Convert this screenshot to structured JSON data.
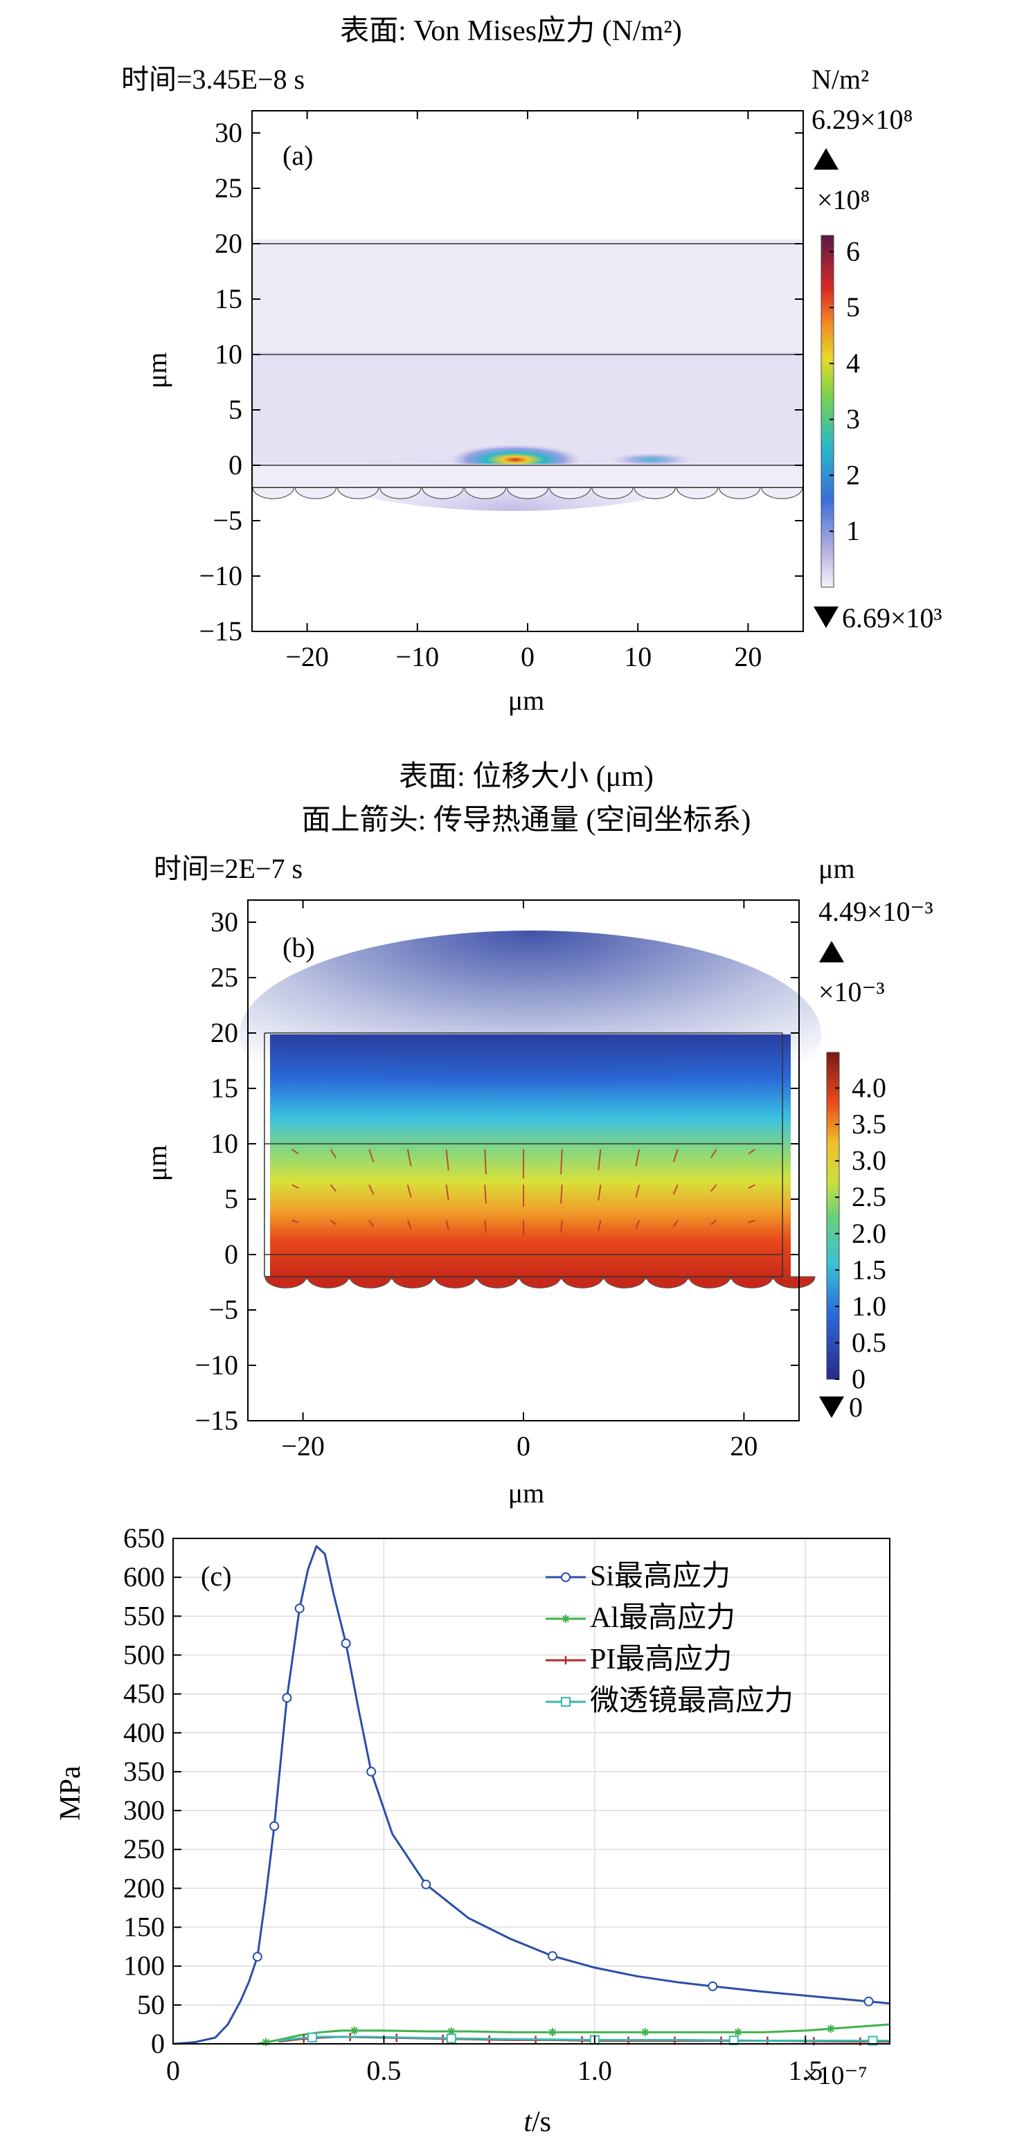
{
  "colors": {
    "si_series": "#2a4fa8",
    "al_series": "#3fb24a",
    "pi_series": "#b22a2a",
    "lens_series": "#3ab7b0",
    "axis": "#000000",
    "grid": "#dcdcdc"
  },
  "panel_a": {
    "title": "表面: Von Mises应力 (N/m²)",
    "time_label": "时间=3.45E−8 s",
    "panel_label": "(a)",
    "xlabel": "μm",
    "ylabel": "μm",
    "colorbar": {
      "unit": "N/m²",
      "max_label": "6.29×10⁸",
      "scale_label": "×10⁸",
      "min_label": "6.69×10³",
      "ticks": [
        "6",
        "5",
        "4",
        "3",
        "2",
        "1"
      ],
      "max_value": 6.29,
      "min_value": 0
    }
  },
  "panel_b": {
    "title_line1": "表面: 位移大小 (μm)",
    "title_line2": "面上箭头: 传导热通量 (空间坐标系)",
    "time_label": "时间=2E−7 s",
    "panel_label": "(b)",
    "xlabel": "μm",
    "ylabel": "μm",
    "colorbar": {
      "unit": "μm",
      "max_label": "4.49×10⁻³",
      "scale_label": "×10⁻³",
      "min_label": "0",
      "ticks": [
        "4.0",
        "3.5",
        "3.0",
        "2.5",
        "2.0",
        "1.5",
        "1.0",
        "0.5",
        "0"
      ],
      "max_value": 4.49,
      "min_value": 0
    }
  },
  "panel_c": {
    "panel_label": "(c)",
    "xlabel_var": "t",
    "xlabel_unit": "/s",
    "x_scale_label": "×10⁻⁷",
    "ylabel": "MPa"
  },
  "chart_data": [
    {
      "type": "heatmap",
      "panel": "a",
      "xlim": [
        -25,
        25
      ],
      "ylim": [
        -15,
        32
      ],
      "xticks": [
        -20,
        -10,
        0,
        10,
        20
      ],
      "yticks": [
        30,
        25,
        20,
        15,
        10,
        5,
        0,
        -5,
        -10,
        -15
      ],
      "layer_boundaries": [
        20,
        10,
        0,
        -2
      ],
      "peak": {
        "x": -1,
        "y": 0,
        "value": 629000000.0
      }
    },
    {
      "type": "heatmap",
      "panel": "b",
      "xlim": [
        -25,
        25
      ],
      "ylim": [
        -15,
        32
      ],
      "xticks": [
        -20,
        0,
        20
      ],
      "yticks": [
        30,
        25,
        20,
        15,
        10,
        5,
        0,
        -5,
        -10,
        -15
      ],
      "layer_boundaries": [
        20,
        10,
        0,
        -2
      ]
    },
    {
      "type": "line",
      "panel": "c",
      "xlim": [
        0,
        1.7
      ],
      "ylim": [
        0,
        650
      ],
      "xticks": [
        0,
        0.5,
        1.0,
        1.5
      ],
      "yticks": [
        0,
        50,
        100,
        150,
        200,
        250,
        300,
        350,
        400,
        450,
        500,
        550,
        600,
        650
      ],
      "legend": "top-right",
      "grid": true,
      "series": [
        {
          "name": "Si最高应力",
          "marker": "circle",
          "x": [
            0,
            0.05,
            0.1,
            0.13,
            0.16,
            0.18,
            0.2,
            0.22,
            0.24,
            0.27,
            0.3,
            0.32,
            0.34,
            0.36,
            0.38,
            0.41,
            0.44,
            0.47,
            0.52,
            0.6,
            0.7,
            0.8,
            0.9,
            1.0,
            1.1,
            1.2,
            1.28,
            1.4,
            1.5,
            1.6,
            1.7
          ],
          "y": [
            0,
            2,
            8,
            25,
            55,
            80,
            112,
            190,
            280,
            445,
            560,
            610,
            640,
            630,
            580,
            515,
            430,
            350,
            270,
            205,
            162,
            135,
            113,
            98,
            87,
            79,
            74,
            67,
            62,
            57,
            52
          ],
          "marker_x": [
            0.2,
            0.24,
            0.27,
            0.3,
            0.41,
            0.47,
            0.6,
            0.9,
            1.28,
            1.65
          ]
        },
        {
          "name": "Al最高应力",
          "marker": "asterisk",
          "x": [
            0.2,
            0.25,
            0.3,
            0.35,
            0.4,
            0.5,
            0.6,
            0.7,
            0.8,
            0.9,
            1.0,
            1.1,
            1.2,
            1.3,
            1.4,
            1.5,
            1.6,
            1.7
          ],
          "y": [
            0,
            5,
            11,
            15,
            17,
            17,
            16,
            16,
            15,
            15,
            15,
            15,
            15,
            15,
            15,
            17,
            21,
            25
          ],
          "marker_x": [
            0.22,
            0.43,
            0.66,
            0.9,
            1.12,
            1.34,
            1.56,
            1.78
          ]
        },
        {
          "name": "PI最高应力",
          "marker": "plus",
          "x": [
            0.25,
            0.3,
            0.35,
            0.4,
            0.5,
            0.6,
            0.7,
            0.8,
            0.9,
            1.0,
            1.2,
            1.4,
            1.6,
            1.7
          ],
          "y": [
            3,
            6,
            8,
            9,
            8,
            7,
            6,
            5,
            5,
            4,
            4,
            4,
            3,
            3
          ],
          "marker_x": [
            0.31,
            0.42,
            0.53,
            0.64,
            0.75,
            0.86,
            0.97,
            1.08,
            1.19,
            1.3,
            1.41,
            1.52,
            1.63,
            1.74
          ]
        },
        {
          "name": "微透镜最高应力",
          "marker": "square",
          "x": [
            0.25,
            0.3,
            0.35,
            0.45,
            0.55,
            0.65,
            0.8,
            1.0,
            1.2,
            1.4,
            1.6,
            1.7
          ],
          "y": [
            4,
            7,
            9,
            9,
            8,
            7,
            6,
            5,
            5,
            4,
            4,
            4
          ],
          "marker_x": [
            0.33,
            0.66,
            1.0,
            1.33,
            1.66
          ]
        }
      ]
    }
  ]
}
